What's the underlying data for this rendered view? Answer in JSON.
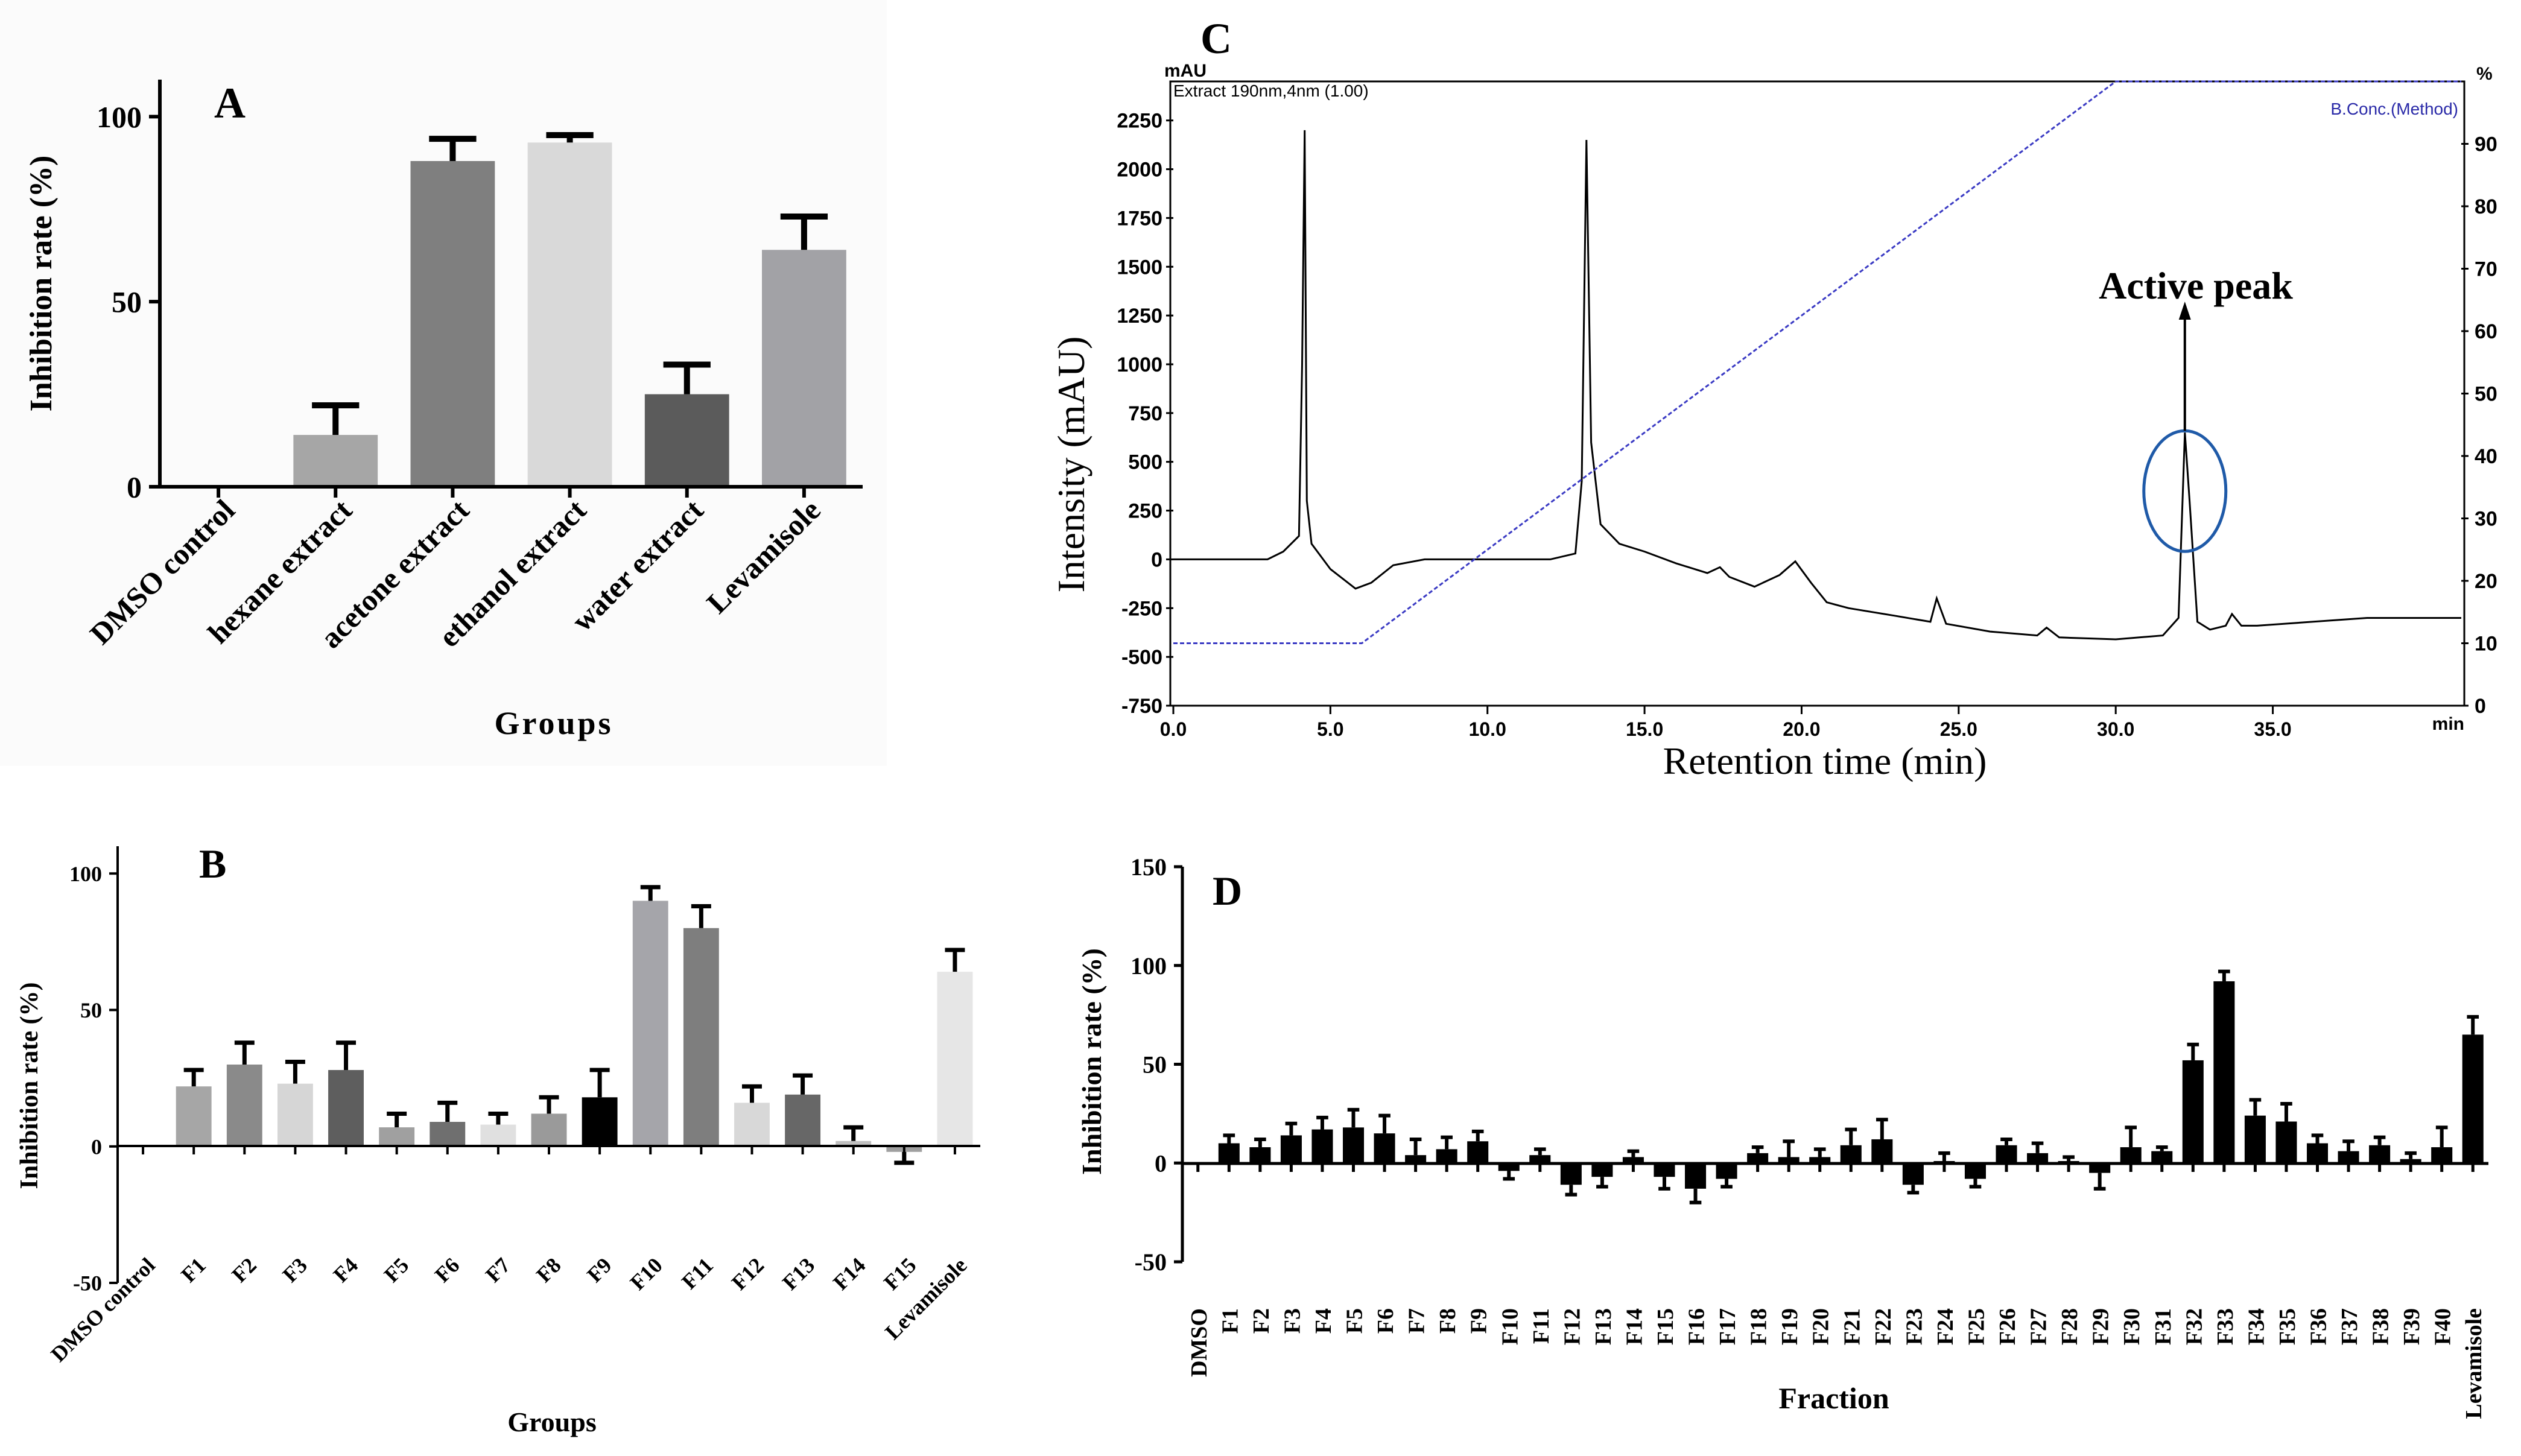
{
  "chart_data": [
    {
      "panel": "A",
      "type": "bar",
      "title": "",
      "xlabel": "Groups",
      "ylabel": "Inhibition rate (%)",
      "ylim": [
        0,
        110
      ],
      "yticks": [
        0,
        50,
        100
      ],
      "categories": [
        "DMSO control",
        "hexane extract",
        "acetone extract",
        "ethanol extract",
        "water extract",
        "Levamisole"
      ],
      "values": [
        0,
        14,
        88,
        93,
        25,
        64
      ],
      "errors": [
        0,
        8,
        6,
        2,
        8,
        9
      ],
      "colors": [
        "#808080",
        "#a6a6a6",
        "#7f7f7f",
        "#d9d9d9",
        "#5b5b5b",
        "#a2a2a6"
      ]
    },
    {
      "panel": "B",
      "type": "bar",
      "title": "",
      "xlabel": "Groups",
      "ylabel": "Inhibition rate (%)",
      "ylim": [
        -50,
        110
      ],
      "yticks": [
        -50,
        0,
        50,
        100
      ],
      "categories": [
        "DMSO control",
        "F1",
        "F2",
        "F3",
        "F4",
        "F5",
        "F6",
        "F7",
        "F8",
        "F9",
        "F10",
        "F11",
        "F12",
        "F13",
        "F14",
        "F15",
        "Levamisole"
      ],
      "values": [
        0,
        22,
        30,
        23,
        28,
        7,
        9,
        8,
        12,
        18,
        90,
        80,
        16,
        19,
        2,
        -2,
        64
      ],
      "errors": [
        0,
        6,
        8,
        8,
        10,
        5,
        7,
        4,
        6,
        10,
        5,
        8,
        6,
        7,
        5,
        4,
        8
      ],
      "colors": [
        "#808080",
        "#a6a6a6",
        "#8a8a8a",
        "#d6d6d6",
        "#5e5e5e",
        "#a0a0a0",
        "#6f6f6f",
        "#e0e0e0",
        "#9a9a9a",
        "#000000",
        "#a5a5aa",
        "#7e7e7e",
        "#d8d8d8",
        "#676767",
        "#c0c0c0",
        "#a0a0a0",
        "#e6e6e6"
      ]
    },
    {
      "panel": "C",
      "type": "line",
      "title": "",
      "xlabel": "Retention time (min)",
      "ylabel": "Intensity (mAU)",
      "xlim": [
        0,
        41
      ],
      "ylim": [
        -750,
        2450
      ],
      "y2lim": [
        0,
        100
      ],
      "top_left_unit": "mAU",
      "top_right_unit": "%",
      "xunit": "min",
      "xticks": [
        "0.0",
        "5.0",
        "10.0",
        "15.0",
        "20.0",
        "25.0",
        "30.0",
        "35.0"
      ],
      "yticks": [
        -750,
        -500,
        -250,
        0,
        250,
        500,
        750,
        1000,
        1250,
        1500,
        1750,
        2000,
        2250
      ],
      "y2ticks": [
        0,
        10,
        20,
        30,
        40,
        50,
        60,
        70,
        80,
        90
      ],
      "legend_left": "Extract 190nm,4nm (1.00)",
      "legend_right": "B.Conc.(Method)",
      "annotation": "Active peak",
      "series": [
        {
          "name": "Extract 190nm,4nm (1.00)",
          "color": "#000000",
          "x": [
            0,
            3,
            3.5,
            4.0,
            4.1,
            4.18,
            4.25,
            4.4,
            5.0,
            5.8,
            6.3,
            7.0,
            8,
            10,
            12,
            12.8,
            13.0,
            13.15,
            13.3,
            13.6,
            14.2,
            15,
            16,
            17,
            17.4,
            17.7,
            18.5,
            19.3,
            19.8,
            20.3,
            20.8,
            21.5,
            23,
            24.1,
            24.3,
            24.6,
            26,
            27.5,
            27.8,
            28.2,
            30,
            31.5,
            32.0,
            32.2,
            32.35,
            32.6,
            33.0,
            33.5,
            33.7,
            34.0,
            34.5,
            38,
            41
          ],
          "values": [
            0,
            0,
            40,
            120,
            1000,
            2200,
            300,
            80,
            -50,
            -150,
            -120,
            -30,
            0,
            0,
            0,
            30,
            400,
            2150,
            600,
            180,
            80,
            40,
            -20,
            -70,
            -40,
            -90,
            -140,
            -80,
            -10,
            -120,
            -220,
            -250,
            -290,
            -320,
            -200,
            -330,
            -370,
            -390,
            -350,
            -400,
            -410,
            -390,
            -300,
            650,
            300,
            -320,
            -360,
            -340,
            -280,
            -340,
            -340,
            -300,
            -300
          ]
        },
        {
          "name": "B.Conc.(Method)",
          "color": "#3b3bc4",
          "axis": "right",
          "x": [
            0,
            6,
            30,
            41
          ],
          "values": [
            10,
            10,
            100,
            100
          ]
        }
      ]
    },
    {
      "panel": "D",
      "type": "bar",
      "title": "",
      "xlabel": "Fraction",
      "ylabel": "Inhibition rate (%)",
      "ylim": [
        -50,
        150
      ],
      "yticks": [
        -50,
        0,
        50,
        100,
        150
      ],
      "categories": [
        "DMSO",
        "F1",
        "F2",
        "F3",
        "F4",
        "F5",
        "F6",
        "F7",
        "F8",
        "F9",
        "F10",
        "F11",
        "F12",
        "F13",
        "F14",
        "F15",
        "F16",
        "F17",
        "F18",
        "F19",
        "F20",
        "F21",
        "F22",
        "F23",
        "F24",
        "F25",
        "F26",
        "F27",
        "F28",
        "F29",
        "F30",
        "F31",
        "F32",
        "F33",
        "F34",
        "F35",
        "F36",
        "F37",
        "F38",
        "F39",
        "F40",
        "Levamisole"
      ],
      "values": [
        0,
        10,
        8,
        14,
        17,
        18,
        15,
        4,
        7,
        11,
        -4,
        4,
        -11,
        -7,
        3,
        -7,
        -13,
        -8,
        5,
        3,
        3,
        9,
        12,
        -11,
        1,
        -8,
        9,
        5,
        1,
        -5,
        8,
        6,
        52,
        92,
        24,
        21,
        10,
        6,
        9,
        2,
        8,
        65
      ],
      "errors": [
        0,
        4,
        4,
        6,
        6,
        9,
        9,
        8,
        6,
        5,
        4,
        3,
        5,
        5,
        3,
        6,
        7,
        4,
        3,
        8,
        4,
        8,
        10,
        4,
        4,
        4,
        3,
        5,
        2,
        8,
        10,
        2,
        8,
        5,
        8,
        9,
        4,
        5,
        4,
        3,
        10,
        9
      ],
      "colors": [
        "#000000"
      ]
    }
  ],
  "labels": {
    "panel_a": "A",
    "panel_b": "B",
    "panel_c": "C",
    "panel_d": "D"
  }
}
